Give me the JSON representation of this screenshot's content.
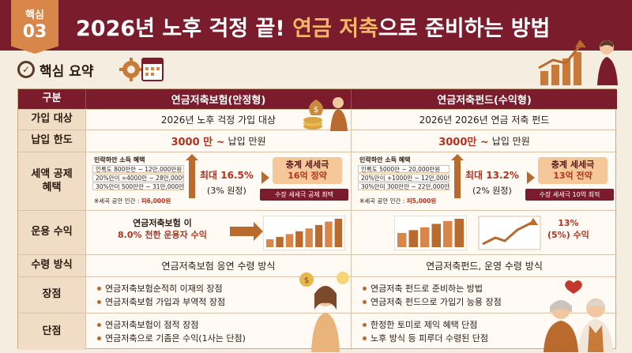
{
  "header": {
    "badge_line1": "핵심",
    "badge_line2": "03",
    "title_part1": "2026년 노후 걱정 끝! ",
    "title_highlight1": "연금 저축",
    "title_part2": "으로 준비하는 방법"
  },
  "summary": {
    "label": "핵심 요약",
    "check_icon": "check-circle-icon"
  },
  "table": {
    "head": {
      "category": "구분",
      "col1": "연금저축보험(안정형)",
      "col2": "연금저축펀드(수익형)"
    },
    "join": {
      "category": "가입 대상",
      "col1": "2026년 노후 걱정 가입 대상",
      "col2": "2026년 2026년 연금 저축 펀드"
    },
    "limit": {
      "category": "납입 한도",
      "col1_amount": "3000 만 ~",
      "col1_rest": "납입 만원",
      "col2_amount": "3000만 ~",
      "col2_rest": "납입 만원"
    },
    "deduction": {
      "category": "세액 공제\n혜택",
      "col1": {
        "tier_title": "인락하안 소득 혜택",
        "tiers": [
          "인록도 800만만 ~ 12만,000만원",
          "20%만이 =4000만 ~ 28만,000만원",
          "30%만미 500만만 ~ 31만,000만원"
        ],
        "foot_text": "※세곡 공안 인간 : ",
        "foot_value": "피6,000원",
        "max": "최대 16.5%",
        "max_sub": "(3% 원정)",
        "box_line1": "충계 세세극",
        "box_line2": "16억 정약",
        "ribbon": "수장 세세극 공제 최택"
      },
      "col2": {
        "tier_title": "인락하안 소득 혜택",
        "tiers": [
          "인록도 5000만 ~ 20,000만원",
          "20%만이 +1000만 ~ 12만,000만원",
          "30%만미 300만만 ~ 22만,000만원"
        ],
        "foot_text": "※세곡 공안 인간 : ",
        "foot_value": "피5,000원",
        "max": "최대 13.2%",
        "max_sub": "(2% 원정)",
        "box_line1": "충계 세세극",
        "box_line2": "13억 전약",
        "ribbon": "수장 세세극 10억 최적"
      }
    },
    "returns": {
      "category": "운용 수익",
      "col1_line1": "연금저축보험 이",
      "col1_line2": "8.0% 천한 운용자 수익",
      "col2_line1": "13%",
      "col2_line2": "(5%) 수익",
      "bars_left": [
        0.28,
        0.36,
        0.46,
        0.56,
        0.66,
        0.78,
        0.9,
        1.0
      ],
      "bars_right": [
        0.5,
        0.6,
        0.7,
        0.82,
        0.92,
        1.0
      ]
    },
    "receive": {
      "category": "수령 방식",
      "col1": "연금저축보험 응연 수령 방식",
      "col2": "연금저축펀드, 운영 수령 방식"
    },
    "pros": {
      "category": "장점",
      "col1": [
        "연금저축보험순적히 이재의 장점",
        "연금저축보험 가입과 부역적 장점"
      ],
      "col2": [
        "연금저축 펀드로 준비하는 방법",
        "연금저축 펀드으로 가입기 능용 장점"
      ]
    },
    "cons": {
      "category": "단점",
      "col1": [
        "연금저축보험이 점적 장점",
        "연금저축으로 기좀은 수익(1사는 단점)"
      ],
      "col2": [
        "한정한 토미로 제익 혜택 단점",
        "노후 방식 등 피루더 수령된 단점"
      ]
    }
  },
  "colors": {
    "brand": "#7a1c2c",
    "accent": "#d9864a",
    "highlight": "#b4321e",
    "background": "#f6ede1"
  },
  "icons": [
    "check-circle-icon",
    "gear-icon",
    "calendar-icon",
    "money-bag-icon",
    "trend-chart-icon",
    "coin-icon",
    "lightbulb-icon",
    "heart-icon"
  ]
}
